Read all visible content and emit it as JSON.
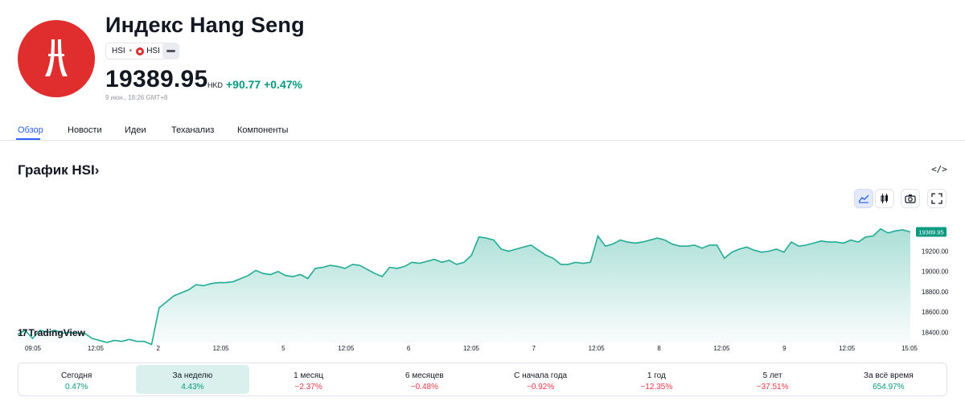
{
  "header": {
    "title": "Индекс Hang Seng",
    "ticker_pill": {
      "symbol": "HSI",
      "exchange": "HSI"
    },
    "price": "19389.95",
    "currency": "HKD",
    "change": "+90.77 +0.47%",
    "timestamp": "9 июн., 18:26 GMT+8",
    "logo_icon": "hang-seng-logo-icon",
    "more_icon": "more-icon"
  },
  "tabs": [
    {
      "label": "Обзор",
      "active": true
    },
    {
      "label": "Новости"
    },
    {
      "label": "Идеи"
    },
    {
      "label": "Теханализ"
    },
    {
      "label": "Компоненты"
    }
  ],
  "chart_section": {
    "title": "График HSI›",
    "embed_icon_text": "</>",
    "tools": [
      "area-chart-icon",
      "candles-icon",
      "camera-icon",
      "fullscreen-icon"
    ],
    "watermark": "TradingView"
  },
  "colors": {
    "accent": "#2962ff",
    "positive": "#089981",
    "negative": "#f23645",
    "line": "#22ab94",
    "logo_red": "#e02d2d"
  },
  "chart_data": {
    "type": "area",
    "title": "",
    "last_value_label": "19389.95",
    "ylim": [
      18300,
      19600
    ],
    "yticks": [
      "19200.00",
      "19000.00",
      "18800.00",
      "18600.00",
      "18400.00"
    ],
    "xticks": [
      "09:05",
      "12:05",
      "2",
      "12:05",
      "5",
      "12:05",
      "6",
      "12:05",
      "7",
      "12:05",
      "8",
      "12:05",
      "9",
      "12:05",
      "15:05"
    ],
    "grid": false,
    "legend": "none",
    "x": [
      "1",
      "2",
      "3",
      "4",
      "5",
      "6",
      "7",
      "8",
      "9",
      "10",
      "11",
      "12",
      "13",
      "14",
      "15",
      "16",
      "17",
      "18",
      "19",
      "20",
      "21",
      "22",
      "23",
      "24",
      "25",
      "26",
      "27",
      "28",
      "29",
      "30",
      "31",
      "32",
      "33",
      "34",
      "35",
      "36",
      "37",
      "38",
      "39",
      "40",
      "41",
      "42",
      "43",
      "44",
      "45",
      "46",
      "47",
      "48",
      "49",
      "50",
      "51",
      "52",
      "53",
      "54",
      "55",
      "56",
      "57",
      "58",
      "59",
      "60",
      "61",
      "62",
      "63",
      "64",
      "65",
      "66",
      "67",
      "68",
      "69",
      "70",
      "71",
      "72",
      "73",
      "74",
      "75",
      "76",
      "77",
      "78",
      "79",
      "80",
      "81",
      "82",
      "83",
      "84",
      "85",
      "86",
      "87",
      "88",
      "89",
      "90",
      "91",
      "92",
      "93",
      "94",
      "95",
      "96",
      "97",
      "98",
      "99",
      "100",
      "101",
      "102",
      "103",
      "104",
      "105",
      "106",
      "107",
      "108",
      "109",
      "110",
      "111",
      "112",
      "113",
      "114",
      "115",
      "116",
      "117",
      "118",
      "119",
      "120",
      "121"
    ],
    "series": [
      {
        "values": [
          18380,
          18420,
          18340,
          18420,
          18400,
          18420,
          18390,
          18400,
          18390,
          18390,
          18340,
          18320,
          18300,
          18320,
          18310,
          18330,
          18310,
          18310,
          18280,
          18640,
          18700,
          18760,
          18790,
          18820,
          18870,
          18860,
          18880,
          18890,
          18890,
          18900,
          18930,
          18960,
          19010,
          18980,
          18970,
          19000,
          18960,
          18950,
          18970,
          18930,
          19030,
          19040,
          19060,
          19050,
          19030,
          19070,
          19060,
          19020,
          18980,
          18950,
          19040,
          19030,
          19050,
          19090,
          19080,
          19100,
          19120,
          19090,
          19110,
          19070,
          19090,
          19160,
          19340,
          19330,
          19310,
          19220,
          19200,
          19220,
          19240,
          19260,
          19210,
          19160,
          19130,
          19070,
          19070,
          19090,
          19080,
          19090,
          19350,
          19250,
          19270,
          19310,
          19290,
          19280,
          19290,
          19310,
          19330,
          19310,
          19270,
          19250,
          19250,
          19260,
          19230,
          19260,
          19260,
          19130,
          19190,
          19220,
          19240,
          19210,
          19190,
          19200,
          19220,
          19190,
          19290,
          19250,
          19260,
          19280,
          19300,
          19290,
          19290,
          19280,
          19310,
          19290,
          19340,
          19350,
          19420,
          19380,
          19400,
          19410,
          19390
        ]
      }
    ]
  },
  "periods": [
    {
      "label": "Сегодня",
      "value": "0.47%",
      "dir": "pos"
    },
    {
      "label": "За неделю",
      "value": "4.43%",
      "dir": "pos",
      "active": true
    },
    {
      "label": "1 месяц",
      "value": "−2.37%",
      "dir": "neg"
    },
    {
      "label": "6 месяцев",
      "value": "−0.48%",
      "dir": "neg"
    },
    {
      "label": "С начала года",
      "value": "−0.92%",
      "dir": "neg"
    },
    {
      "label": "1 год",
      "value": "−12.35%",
      "dir": "neg"
    },
    {
      "label": "5 лет",
      "value": "−37.51%",
      "dir": "neg"
    },
    {
      "label": "За всё время",
      "value": "654.97%",
      "dir": "pos"
    }
  ]
}
